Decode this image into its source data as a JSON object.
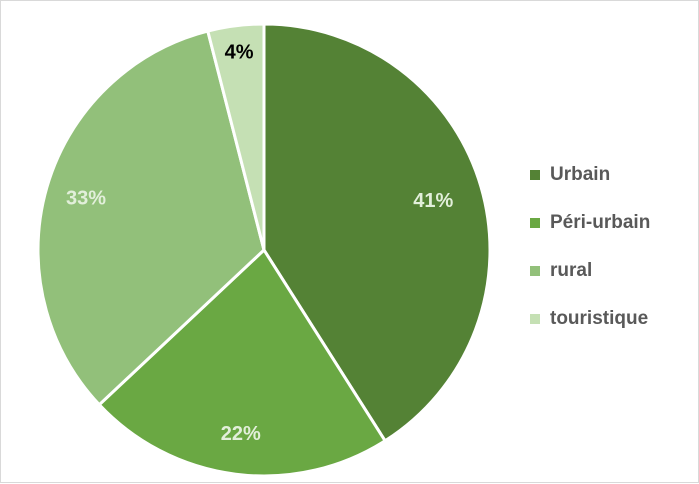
{
  "chart_data": {
    "type": "pie",
    "categories": [
      "Urbain",
      "Péri-urbain",
      "rural",
      "touristique"
    ],
    "values": [
      41,
      22,
      33,
      4
    ],
    "labels": [
      "41%",
      "22%",
      "33%",
      "4%"
    ],
    "colors": [
      "#548235",
      "#6aa843",
      "#92c07a",
      "#c5e0b4"
    ],
    "label_colors": [
      "#e2efda",
      "#e2efda",
      "#e2efda",
      "#000000"
    ],
    "title": "",
    "legend_position": "right",
    "start_angle_deg": 0,
    "direction": "clockwise"
  }
}
